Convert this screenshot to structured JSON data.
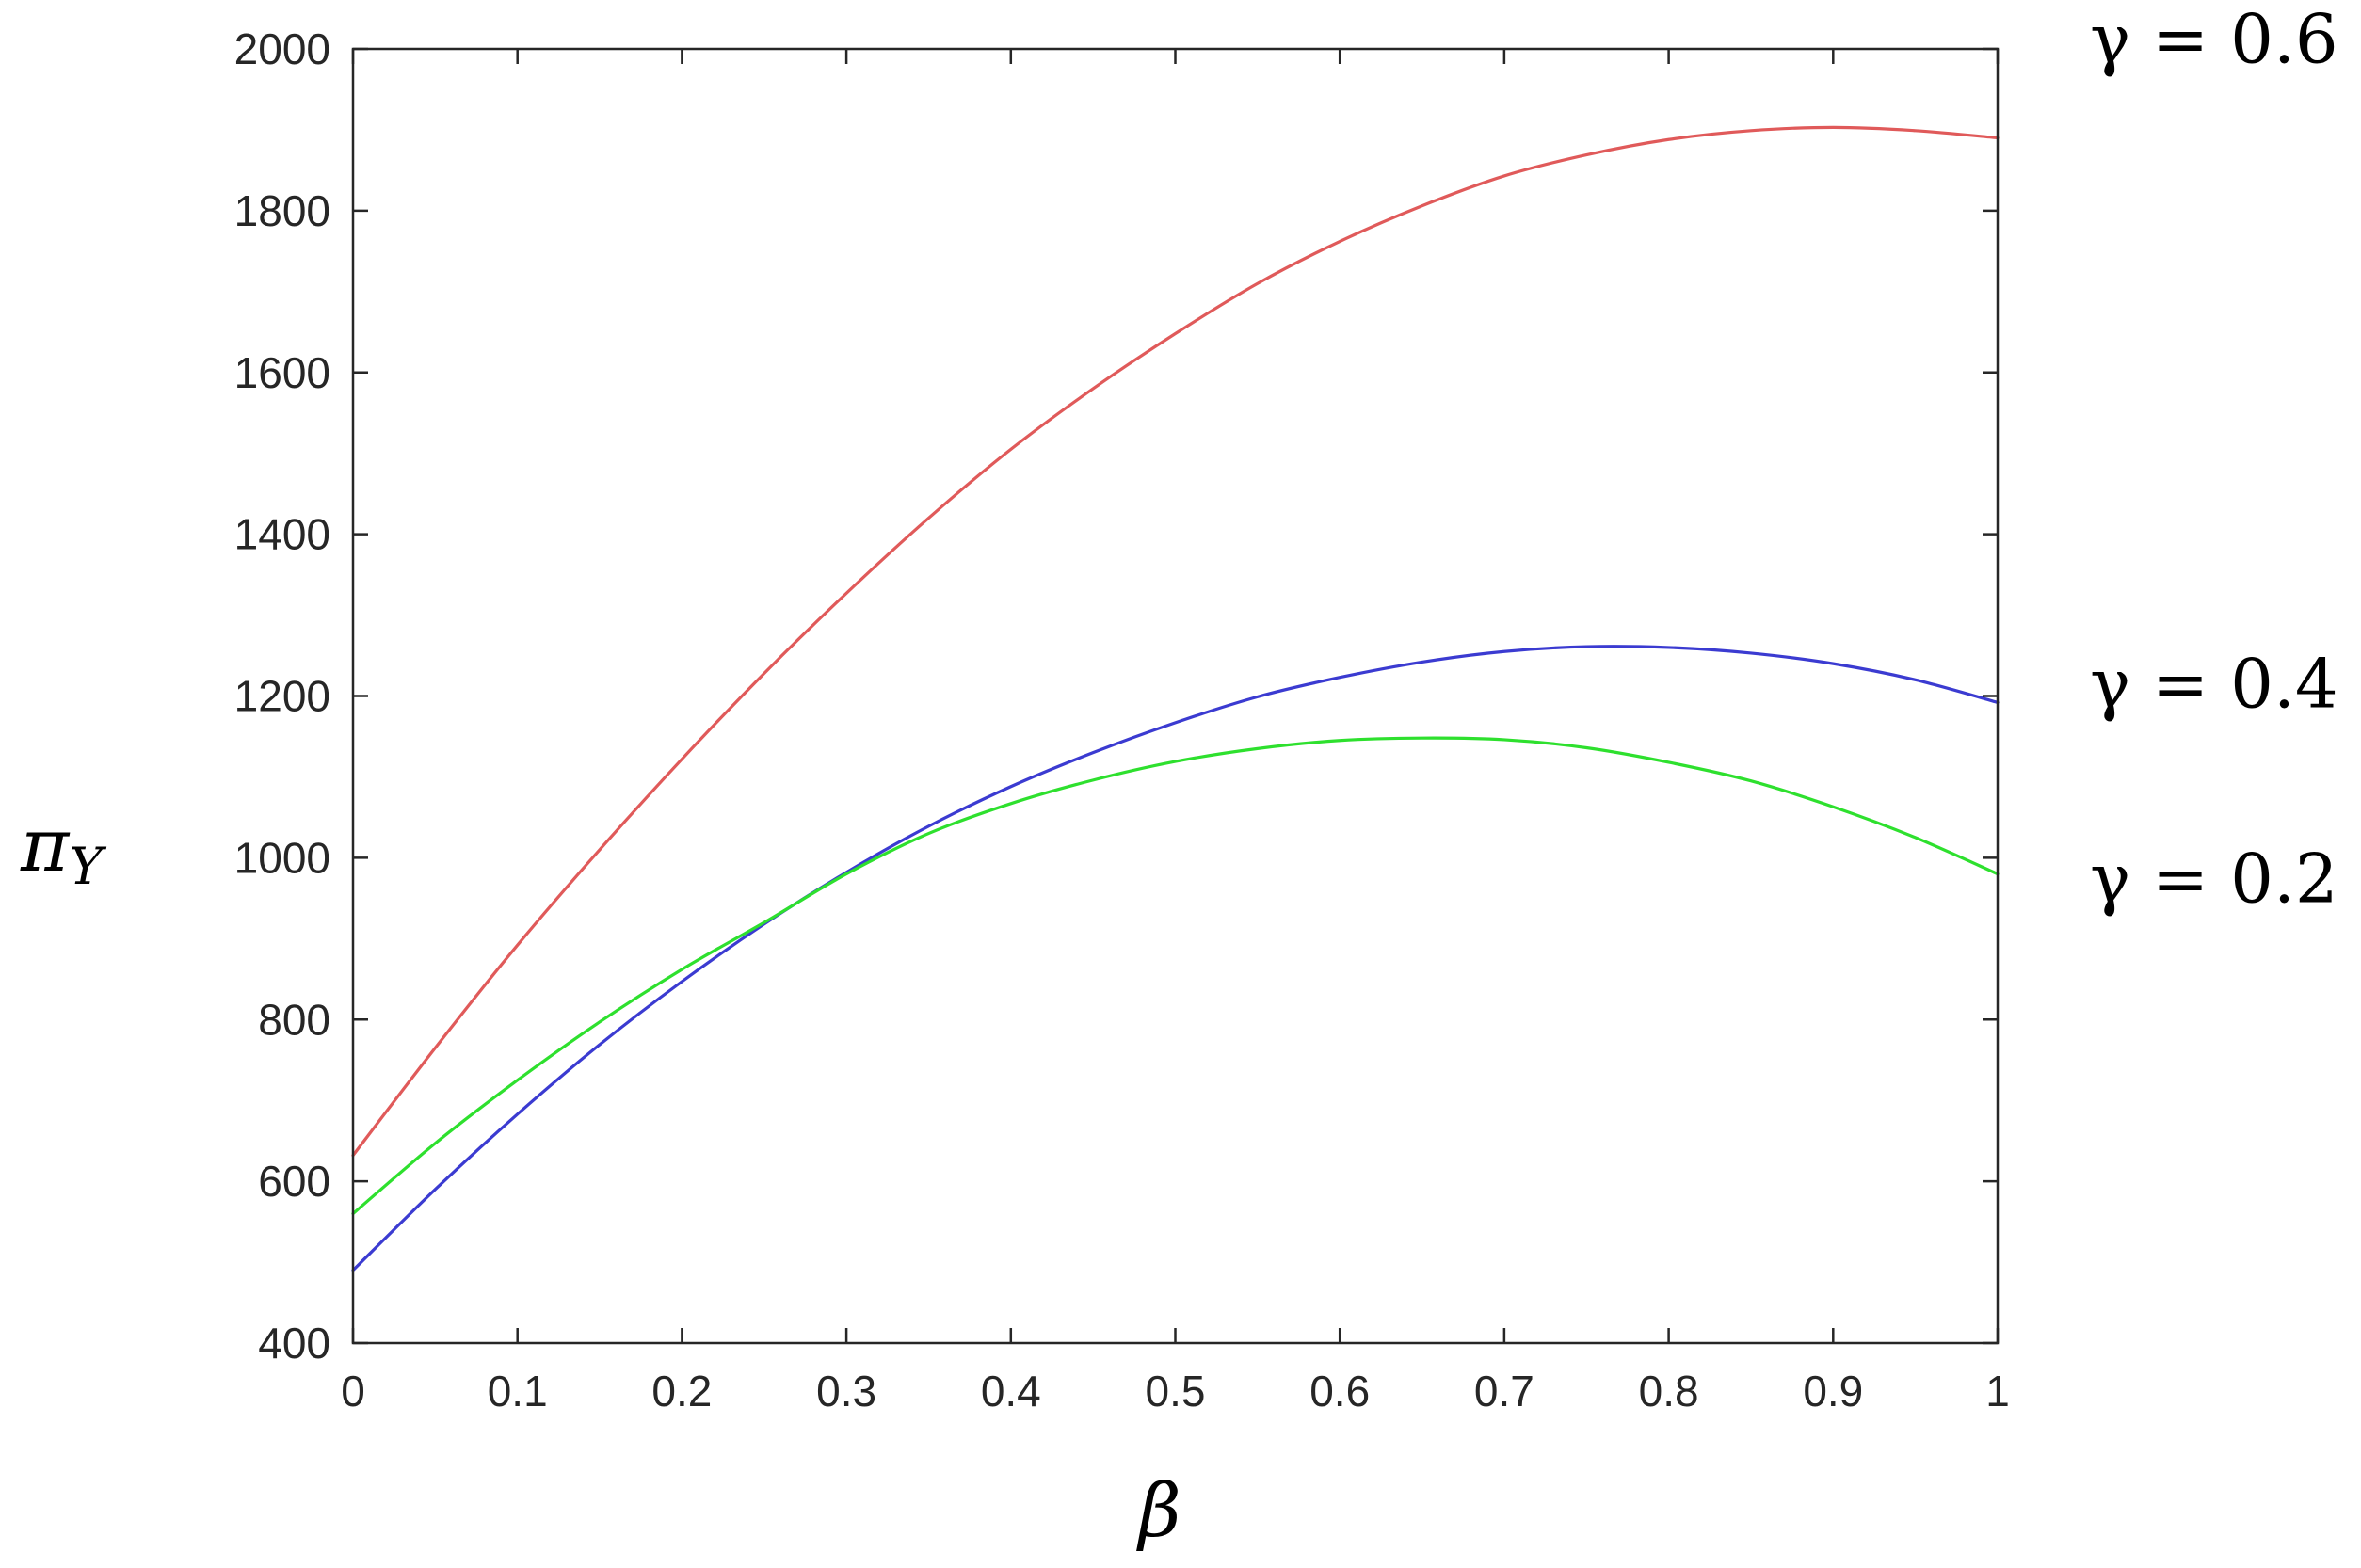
{
  "chart_data": {
    "type": "line",
    "title": "",
    "xlabel": "β",
    "ylabel": "π_Y",
    "ylabel_main": "π",
    "ylabel_sub": "Y",
    "xlim": [
      0,
      1
    ],
    "ylim": [
      400,
      2000
    ],
    "xticks": [
      0,
      0.1,
      0.2,
      0.3,
      0.4,
      0.5,
      0.6,
      0.7,
      0.8,
      0.9,
      1
    ],
    "xtick_labels": [
      "0",
      "0.1",
      "0.2",
      "0.3",
      "0.4",
      "0.5",
      "0.6",
      "0.7",
      "0.8",
      "0.9",
      "1"
    ],
    "yticks": [
      400,
      600,
      800,
      1000,
      1200,
      1400,
      1600,
      1800,
      2000
    ],
    "ytick_labels": [
      "400",
      "600",
      "800",
      "1000",
      "1200",
      "1400",
      "1600",
      "1800",
      "2000"
    ],
    "grid": false,
    "legend": "none",
    "x": [
      0,
      0.05,
      0.1,
      0.15,
      0.2,
      0.25,
      0.3,
      0.35,
      0.4,
      0.45,
      0.5,
      0.55,
      0.6,
      0.65,
      0.7,
      0.75,
      0.8,
      0.85,
      0.9,
      0.95,
      1
    ],
    "series": [
      {
        "name": "γ = 0.6",
        "label": "γ = 0.6",
        "color": "#e05a5a",
        "values": [
          632,
          765,
          892,
          1010,
          1122,
          1228,
          1327,
          1420,
          1505,
          1580,
          1648,
          1710,
          1762,
          1806,
          1843,
          1869,
          1888,
          1899,
          1903,
          1899,
          1890
        ]
      },
      {
        "name": "γ = 0.4",
        "label": "γ = 0.4",
        "color": "#3b3bd1",
        "values": [
          490,
          590,
          683,
          769,
          847,
          918,
          982,
          1039,
          1088,
          1130,
          1167,
          1199,
          1223,
          1242,
          1255,
          1261,
          1260,
          1253,
          1240,
          1220,
          1192
        ]
      },
      {
        "name": "γ = 0.2",
        "label": "γ = 0.2",
        "color": "#2ee02e",
        "values": [
          560,
          647,
          725,
          797,
          862,
          920,
          980,
          1030,
          1067,
          1096,
          1119,
          1135,
          1145,
          1148,
          1146,
          1136,
          1118,
          1095,
          1063,
          1025,
          980
        ]
      }
    ]
  }
}
